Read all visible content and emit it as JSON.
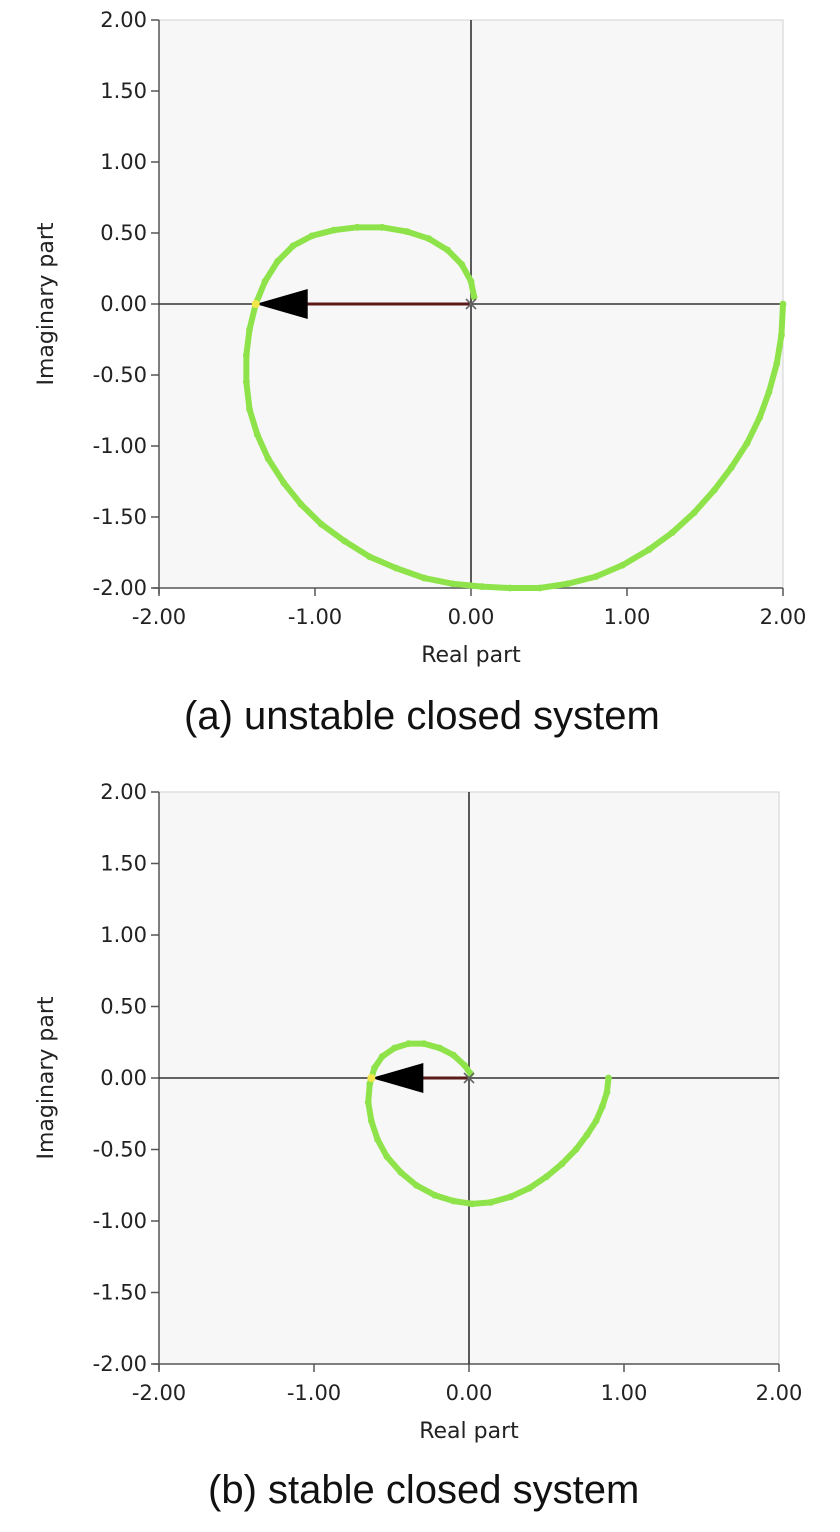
{
  "chart_data": [
    {
      "type": "scatter",
      "caption": "(a) unstable closed system",
      "xlabel": "Real part",
      "ylabel": "Imaginary part",
      "xlim": [
        -2,
        2
      ],
      "ylim": [
        -2,
        2
      ],
      "xticks": [
        "-2.00",
        "-1.00",
        "0.00",
        "1.00",
        "2.00"
      ],
      "yticks": [
        "2.00",
        "1.50",
        "1.00",
        "0.50",
        "0.00",
        "-0.50",
        "-1.00",
        "-1.50",
        "-2.00"
      ],
      "curve_color": "#8fe34a",
      "arrow_color": "#000000",
      "vector_color": "#5a1a1a",
      "plot_bg": "#f7f7f7",
      "series": [
        {
          "points": [
            [
              2.0,
              0.0
            ],
            [
              1.99,
              -0.22
            ],
            [
              1.96,
              -0.42
            ],
            [
              1.91,
              -0.62
            ],
            [
              1.85,
              -0.8
            ],
            [
              1.77,
              -0.98
            ],
            [
              1.67,
              -1.15
            ],
            [
              1.56,
              -1.31
            ],
            [
              1.43,
              -1.47
            ],
            [
              1.29,
              -1.61
            ],
            [
              1.14,
              -1.73
            ],
            [
              0.97,
              -1.84
            ],
            [
              0.8,
              -1.92
            ],
            [
              0.62,
              -1.97
            ],
            [
              0.44,
              -2.0
            ],
            [
              0.25,
              -2.0
            ],
            [
              0.07,
              -1.99
            ],
            [
              -0.12,
              -1.97
            ],
            [
              -0.3,
              -1.93
            ],
            [
              -0.48,
              -1.86
            ],
            [
              -0.65,
              -1.78
            ],
            [
              -0.81,
              -1.67
            ],
            [
              -0.96,
              -1.55
            ],
            [
              -1.09,
              -1.41
            ],
            [
              -1.2,
              -1.26
            ],
            [
              -1.3,
              -1.09
            ],
            [
              -1.37,
              -0.92
            ],
            [
              -1.42,
              -0.74
            ],
            [
              -1.44,
              -0.55
            ],
            [
              -1.44,
              -0.36
            ],
            [
              -1.42,
              -0.18
            ],
            [
              -1.38,
              0.0
            ],
            [
              -1.32,
              0.16
            ],
            [
              -1.24,
              0.3
            ],
            [
              -1.14,
              0.41
            ],
            [
              -1.02,
              0.48
            ],
            [
              -0.88,
              0.52
            ],
            [
              -0.73,
              0.54
            ],
            [
              -0.57,
              0.54
            ],
            [
              -0.41,
              0.51
            ],
            [
              -0.27,
              0.46
            ],
            [
              -0.15,
              0.38
            ],
            [
              -0.06,
              0.28
            ],
            [
              0.0,
              0.16
            ],
            [
              0.02,
              0.05
            ]
          ]
        }
      ],
      "arrow": {
        "from": [
          0.0,
          0.0
        ],
        "to": [
          -1.38,
          0.0
        ]
      }
    },
    {
      "type": "scatter",
      "caption": "(b) stable closed system",
      "xlabel": "Real part",
      "ylabel": "Imaginary part",
      "xlim": [
        -2,
        2
      ],
      "ylim": [
        -2,
        2
      ],
      "xticks": [
        "-2.00",
        "-1.00",
        "0.00",
        "1.00",
        "2.00"
      ],
      "yticks": [
        "2.00",
        "1.50",
        "1.00",
        "0.50",
        "0.00",
        "-0.50",
        "-1.00",
        "-1.50",
        "-2.00"
      ],
      "curve_color": "#8fe34a",
      "arrow_color": "#000000",
      "vector_color": "#5a1a1a",
      "plot_bg": "#f7f7f7",
      "series": [
        {
          "points": [
            [
              0.9,
              0.0
            ],
            [
              0.89,
              -0.1
            ],
            [
              0.86,
              -0.2
            ],
            [
              0.82,
              -0.3
            ],
            [
              0.76,
              -0.4
            ],
            [
              0.69,
              -0.5
            ],
            [
              0.6,
              -0.6
            ],
            [
              0.5,
              -0.69
            ],
            [
              0.39,
              -0.77
            ],
            [
              0.27,
              -0.83
            ],
            [
              0.14,
              -0.87
            ],
            [
              0.02,
              -0.88
            ],
            [
              -0.1,
              -0.86
            ],
            [
              -0.22,
              -0.82
            ],
            [
              -0.34,
              -0.75
            ],
            [
              -0.44,
              -0.66
            ],
            [
              -0.53,
              -0.55
            ],
            [
              -0.59,
              -0.43
            ],
            [
              -0.63,
              -0.3
            ],
            [
              -0.65,
              -0.17
            ],
            [
              -0.64,
              -0.04
            ],
            [
              -0.61,
              0.07
            ],
            [
              -0.56,
              0.15
            ],
            [
              -0.48,
              0.21
            ],
            [
              -0.39,
              0.24
            ],
            [
              -0.29,
              0.24
            ],
            [
              -0.19,
              0.21
            ],
            [
              -0.1,
              0.16
            ],
            [
              -0.03,
              0.09
            ],
            [
              0.01,
              0.03
            ]
          ]
        }
      ],
      "arrow": {
        "from": [
          0.0,
          0.0
        ],
        "to": [
          -0.63,
          0.0
        ]
      }
    }
  ]
}
